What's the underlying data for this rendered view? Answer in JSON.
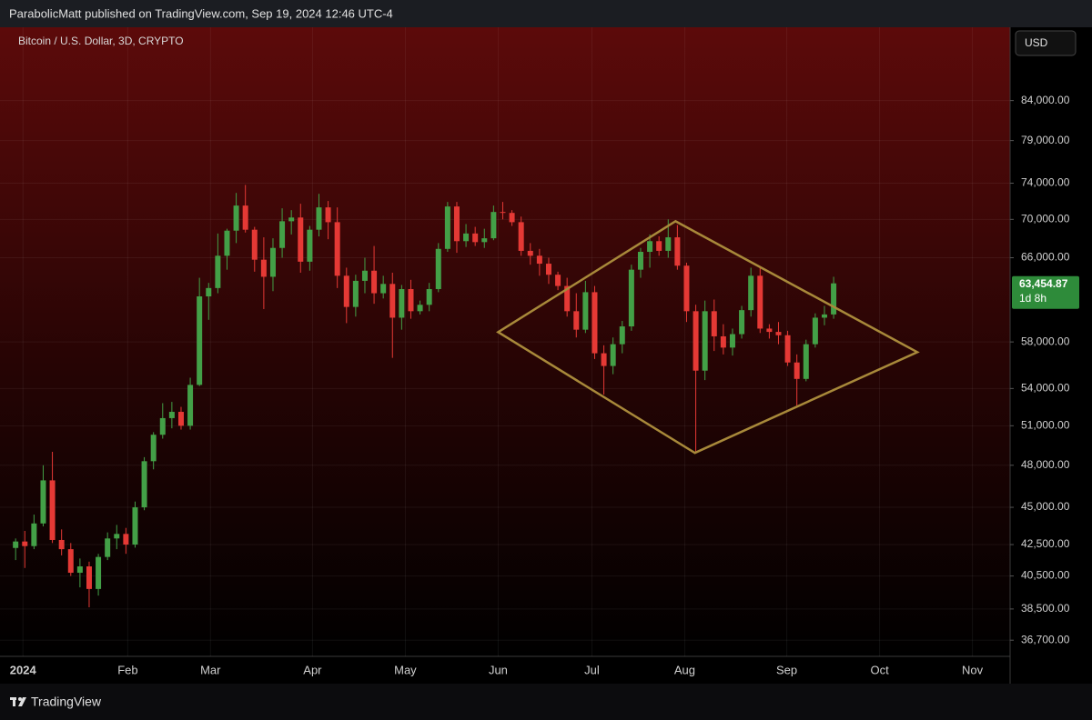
{
  "chart_data": {
    "type": "candlestick",
    "publisher_note": "ParabolicMatt published on TradingView.com, Sep 19, 2024 12:46 UTC-4",
    "title": "Bitcoin / U.S. Dollar, 3D, CRYPTO",
    "currency": "USD",
    "brand": "TradingView",
    "up_color": "#43a047",
    "down_color": "#e53935",
    "log_scale": true,
    "grid": true,
    "candles": {
      "open": [
        42280,
        42700,
        42400,
        43900,
        46900,
        42800,
        42200,
        40700,
        41100,
        39700,
        41700,
        42900,
        43200,
        42500,
        45000,
        48300,
        50300,
        51600,
        52100,
        51000,
        54300,
        62200,
        63000,
        66200,
        68800,
        71500,
        68900,
        65800,
        64100,
        67000,
        69800,
        70200,
        65600,
        68900,
        71300,
        69700,
        64200,
        61200,
        63700,
        64700,
        62500,
        63400,
        60200,
        62900,
        60800,
        61400,
        62900,
        66900,
        71400,
        67700,
        68500,
        67600,
        68000,
        70800,
        70700,
        69700,
        66700,
        66200,
        65400,
        64300,
        63200,
        60800,
        59100,
        62600,
        57000,
        55900,
        57800,
        59400,
        64800,
        66600,
        67700,
        66700,
        68100,
        65200,
        60800,
        55500,
        60800,
        58500,
        57500,
        58700,
        60900,
        64200,
        59200,
        58900,
        58600,
        56200,
        54800,
        57800,
        60200,
        60500
      ],
      "high": [
        42900,
        43400,
        44500,
        48000,
        49000,
        43500,
        42600,
        41600,
        41400,
        41900,
        43300,
        43800,
        43600,
        45400,
        48600,
        50500,
        52800,
        52900,
        52500,
        54900,
        64000,
        63500,
        68500,
        69000,
        72900,
        73800,
        69200,
        68100,
        68000,
        71200,
        71000,
        71700,
        69300,
        72800,
        72000,
        71300,
        65000,
        64300,
        66000,
        67200,
        64200,
        64500,
        63300,
        63800,
        61800,
        63500,
        67500,
        71900,
        71900,
        69500,
        69200,
        69000,
        71500,
        71900,
        71000,
        70300,
        67500,
        66900,
        66000,
        64600,
        64000,
        62500,
        63700,
        63200,
        57700,
        58400,
        59900,
        65300,
        67000,
        68400,
        68200,
        70000,
        69400,
        65500,
        61400,
        61800,
        61900,
        59600,
        59200,
        61300,
        65000,
        65100,
        59600,
        59800,
        59000,
        56900,
        58200,
        60600,
        61300,
        64100
      ],
      "low": [
        41500,
        41000,
        42200,
        43700,
        42600,
        41800,
        40500,
        39800,
        38600,
        39300,
        41500,
        42200,
        41900,
        42300,
        44800,
        47700,
        50000,
        50800,
        50700,
        50700,
        54200,
        60000,
        62500,
        64800,
        67500,
        68600,
        64600,
        61000,
        62700,
        66000,
        68400,
        64500,
        64700,
        68200,
        67900,
        63000,
        59700,
        60300,
        62500,
        61500,
        62000,
        56600,
        59100,
        60100,
        60500,
        60800,
        62600,
        66600,
        66500,
        67100,
        67200,
        67000,
        67800,
        70000,
        69300,
        66200,
        65300,
        64200,
        63400,
        62800,
        60300,
        58400,
        58800,
        56500,
        53500,
        55200,
        57000,
        59000,
        64000,
        65000,
        66200,
        66000,
        64800,
        59800,
        49000,
        54700,
        57200,
        56900,
        56800,
        58300,
        60300,
        58800,
        58300,
        57800,
        55900,
        52600,
        54600,
        57500,
        59500,
        60100
      ],
      "close": [
        42700,
        42400,
        43900,
        46900,
        42800,
        42200,
        40700,
        41100,
        39700,
        41700,
        42900,
        43200,
        42500,
        45000,
        48300,
        50300,
        51600,
        52100,
        51000,
        54300,
        62200,
        63000,
        66200,
        68800,
        71500,
        68900,
        65800,
        64100,
        67000,
        69800,
        70200,
        65600,
        68900,
        71300,
        69700,
        64200,
        61200,
        63700,
        64700,
        62500,
        63400,
        60200,
        62900,
        60800,
        61400,
        62900,
        66900,
        71400,
        67700,
        68500,
        67600,
        68000,
        70800,
        70700,
        69700,
        66700,
        66200,
        65400,
        64300,
        63200,
        60800,
        59100,
        62600,
        57000,
        55900,
        57800,
        59400,
        64800,
        66600,
        67700,
        66700,
        68100,
        65200,
        60800,
        55500,
        60800,
        58500,
        57500,
        58700,
        60900,
        64200,
        59200,
        58900,
        58600,
        56200,
        54800,
        57800,
        60200,
        60500,
        63454.87
      ]
    },
    "price_tag": {
      "label": "63,454.87",
      "countdown": "1d 8h",
      "color": "#2e8b3a"
    },
    "drawings": [
      {
        "type": "polygon",
        "color": "#a8893a",
        "points": [
          {
            "x": 52.5,
            "price": 58880
          },
          {
            "x": 71.8,
            "price": 69800
          },
          {
            "x": 98.1,
            "price": 57100
          },
          {
            "x": 73.9,
            "price": 48920
          }
        ]
      }
    ],
    "xlim": [
      -1.7,
      108.2
    ],
    "xticks": [
      {
        "value": 0.8,
        "label": "2024"
      },
      {
        "value": 12.2,
        "label": "Feb"
      },
      {
        "value": 21.2,
        "label": "Mar"
      },
      {
        "value": 32.3,
        "label": "Apr"
      },
      {
        "value": 42.4,
        "label": "May"
      },
      {
        "value": 52.5,
        "label": "Jun"
      },
      {
        "value": 62.7,
        "label": "Jul"
      },
      {
        "value": 72.8,
        "label": "Aug"
      },
      {
        "value": 83.9,
        "label": "Sep"
      },
      {
        "value": 94.0,
        "label": "Oct"
      },
      {
        "value": 104.1,
        "label": "Nov"
      }
    ],
    "ylim": [
      35800,
      94000
    ],
    "yticks": [
      {
        "value": 36700,
        "label": "36,700.00"
      },
      {
        "value": 38500,
        "label": "38,500.00"
      },
      {
        "value": 40500,
        "label": "40,500.00"
      },
      {
        "value": 42500,
        "label": "42,500.00"
      },
      {
        "value": 45000,
        "label": "45,000.00"
      },
      {
        "value": 48000,
        "label": "48,000.00"
      },
      {
        "value": 51000,
        "label": "51,000.00"
      },
      {
        "value": 54000,
        "label": "54,000.00"
      },
      {
        "value": 58000,
        "label": "58,000.00"
      },
      {
        "value": 66000,
        "label": "66,000.00"
      },
      {
        "value": 70000,
        "label": "70,000.00"
      },
      {
        "value": 74000,
        "label": "74,000.00"
      },
      {
        "value": 79000,
        "label": "79,000.00"
      },
      {
        "value": 84000,
        "label": "84,000.00"
      }
    ]
  }
}
